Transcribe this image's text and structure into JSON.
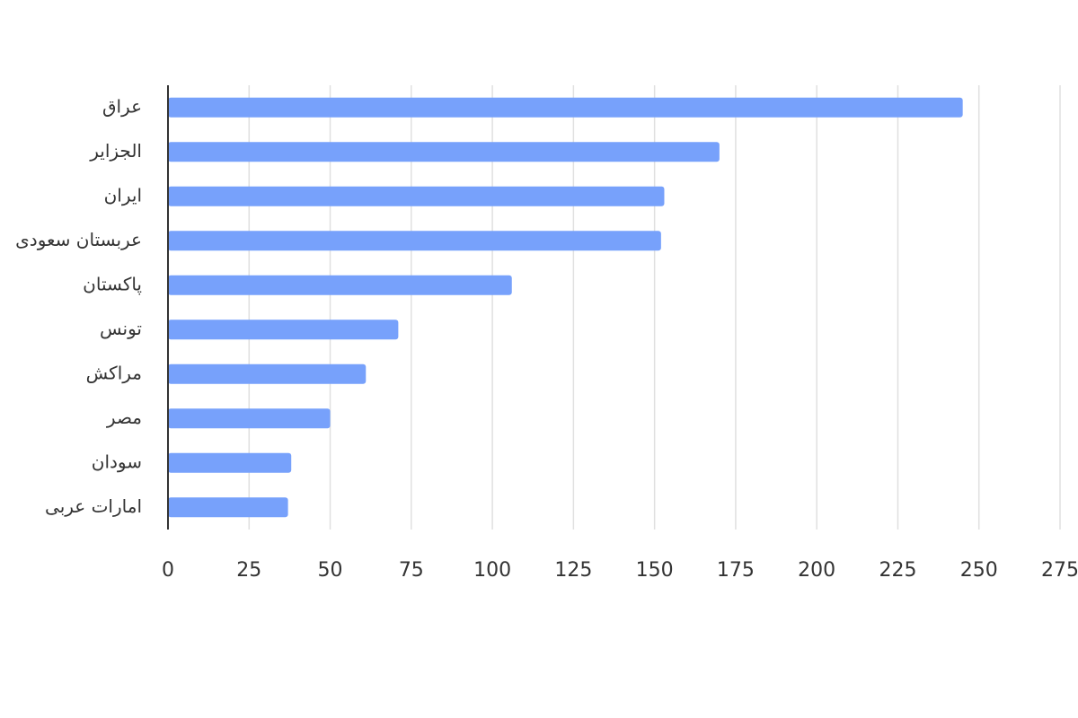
{
  "chart_data": {
    "type": "bar",
    "orientation": "horizontal",
    "categories": [
      "عراق",
      "الجزایر",
      "ایران",
      "عربستان سعودی",
      "پاکستان",
      "تونس",
      "مراکش",
      "مصر",
      "سودان",
      "امارات عربی"
    ],
    "values": [
      245,
      170,
      153,
      152,
      106,
      71,
      61,
      50,
      38,
      37
    ],
    "color": "#77a1fb",
    "xlim": [
      0,
      275
    ],
    "xticks": [
      0,
      25,
      50,
      75,
      100,
      125,
      150,
      175,
      200,
      225,
      250,
      275
    ],
    "grid": true
  }
}
